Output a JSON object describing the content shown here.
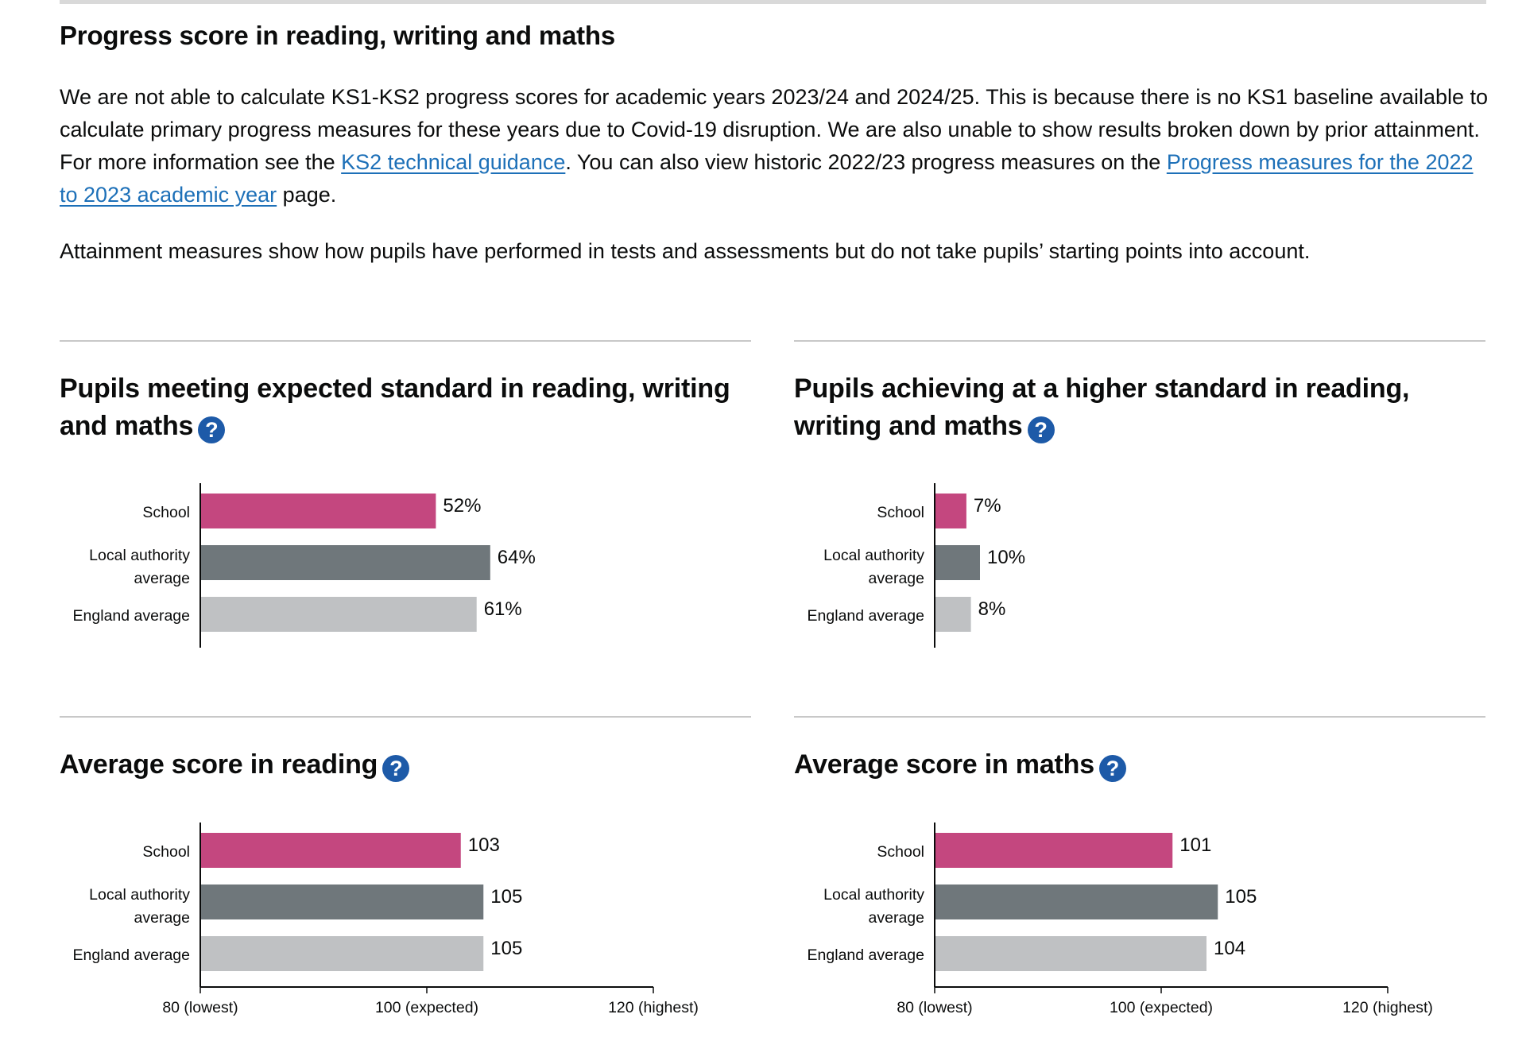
{
  "section": {
    "title": "Progress score in reading, writing and maths",
    "intro_part1": "We are not able to calculate KS1-KS2 progress scores for academic years 2023/24 and 2024/25. This is because there is no KS1 baseline available to calculate primary progress measures for these years due to Covid-19 disruption. We are also unable to show results broken down by prior attainment. For more information see the ",
    "link_guidance": "KS2 technical guidance",
    "intro_part2": ". You can also view historic 2022/23 progress measures on the ",
    "link_progress": "Progress measures for the 2022 to 2023 academic year",
    "intro_part3": " page.",
    "attainment_note": "Attainment measures show how pupils have performed in tests and assessments but do not take pupils’ starting points into account.",
    "help_icon": "?"
  },
  "colors": {
    "school": "#c4477f",
    "la": "#6f777b",
    "england": "#bfc1c3",
    "link": "#1d70b8",
    "help": "#1d5aa8"
  },
  "panels": [
    {
      "title": "Pupils meeting expected standard in reading, writing and maths"
    },
    {
      "title": "Pupils achieving at a higher standard in reading, writing and maths"
    },
    {
      "title": "Average score in reading"
    },
    {
      "title": "Average score in maths"
    }
  ],
  "chart_data": [
    {
      "type": "bar",
      "orientation": "horizontal",
      "categories": [
        "School",
        "Local authority average",
        "England average"
      ],
      "values": [
        52,
        64,
        61
      ],
      "value_labels": [
        "52%",
        "64%",
        "61%"
      ],
      "xlim": [
        0,
        100
      ]
    },
    {
      "type": "bar",
      "orientation": "horizontal",
      "categories": [
        "School",
        "Local authority average",
        "England average"
      ],
      "values": [
        7,
        10,
        8
      ],
      "value_labels": [
        "7%",
        "10%",
        "8%"
      ],
      "xlim": [
        0,
        100
      ]
    },
    {
      "type": "bar",
      "orientation": "horizontal",
      "categories": [
        "School",
        "Local authority average",
        "England average"
      ],
      "values": [
        103,
        105,
        105
      ],
      "value_labels": [
        "103",
        "105",
        "105"
      ],
      "xlim": [
        80,
        120
      ],
      "xticks": [
        80,
        100,
        120
      ],
      "xtick_labels": [
        "80 (lowest)",
        "100 (expected)",
        "120 (highest)"
      ]
    },
    {
      "type": "bar",
      "orientation": "horizontal",
      "categories": [
        "School",
        "Local authority average",
        "England average"
      ],
      "values": [
        101,
        105,
        104
      ],
      "value_labels": [
        "101",
        "105",
        "104"
      ],
      "xlim": [
        80,
        120
      ],
      "xticks": [
        80,
        100,
        120
      ],
      "xtick_labels": [
        "80 (lowest)",
        "100 (expected)",
        "120 (highest)"
      ]
    }
  ]
}
